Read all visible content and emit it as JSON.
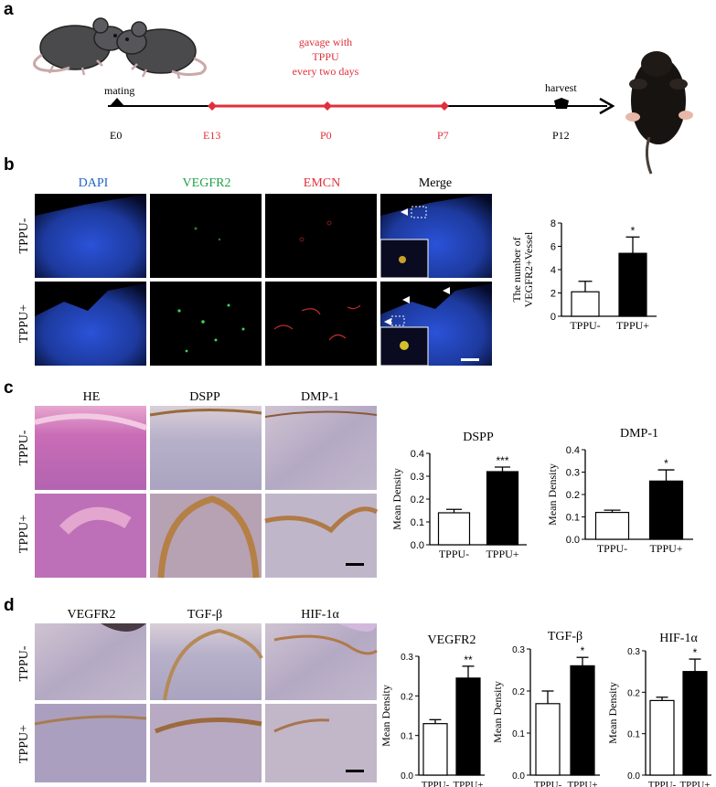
{
  "panel_a": {
    "letter": "a",
    "treatment_text": [
      "gavage with",
      "TPPU",
      "every two days"
    ],
    "timepoints": [
      {
        "label": "mating",
        "kind": "event"
      },
      {
        "label": "E0",
        "kind": "day"
      },
      {
        "label": "E13",
        "kind": "day"
      },
      {
        "label": "P0",
        "kind": "day"
      },
      {
        "label": "P7",
        "kind": "day"
      },
      {
        "label": "harvest",
        "kind": "event"
      },
      {
        "label": "P12",
        "kind": "day"
      }
    ],
    "colors": {
      "treatment": "#e0303a",
      "timeline": "#000000"
    }
  },
  "panel_b": {
    "letter": "b",
    "columns": [
      "DAPI",
      "VEGFR2",
      "EMCN",
      "Merge"
    ],
    "column_colors": [
      "#1e64c8",
      "#1fa14a",
      "#e0303a",
      "#000000"
    ],
    "rows": [
      "TPPU-",
      "TPPU+"
    ]
  },
  "panel_c": {
    "letter": "c",
    "columns": [
      "HE",
      "DSPP",
      "DMP-1"
    ],
    "rows": [
      "TPPU-",
      "TPPU+"
    ]
  },
  "panel_d": {
    "letter": "d",
    "columns": [
      "VEGFR2",
      "TGF-β",
      "HIF-1α"
    ],
    "rows": [
      "TPPU-",
      "TPPU+"
    ]
  },
  "chart_data": [
    {
      "id": "b",
      "type": "bar",
      "title": "",
      "ylabel": [
        "The number of",
        "VEGFR2+Vessel"
      ],
      "categories": [
        "TPPU-",
        "TPPU+"
      ],
      "values": [
        2.1,
        5.4
      ],
      "errors": [
        0.9,
        1.4
      ],
      "ylim": [
        0,
        8
      ],
      "yticks": [
        "0",
        "2",
        "4",
        "6",
        "8"
      ],
      "significance": "*"
    },
    {
      "id": "c1",
      "type": "bar",
      "title": "DSPP",
      "ylabel": "Mean Density",
      "categories": [
        "TPPU-",
        "TPPU+"
      ],
      "values": [
        0.14,
        0.32
      ],
      "errors": [
        0.015,
        0.02
      ],
      "ylim": [
        0,
        0.4
      ],
      "yticks": [
        "0.0",
        "0.1",
        "0.2",
        "0.3",
        "0.4"
      ],
      "significance": "***"
    },
    {
      "id": "c2",
      "type": "bar",
      "title": "DMP-1",
      "ylabel": "Mean Density",
      "categories": [
        "TPPU-",
        "TPPU+"
      ],
      "values": [
        0.12,
        0.26
      ],
      "errors": [
        0.01,
        0.05
      ],
      "ylim": [
        0,
        0.4
      ],
      "yticks": [
        "0.0",
        "0.1",
        "0.2",
        "0.3",
        "0.4"
      ],
      "significance": "*"
    },
    {
      "id": "d1",
      "type": "bar",
      "title": "VEGFR2",
      "ylabel": "Mean Density",
      "categories": [
        "TPPU-",
        "TPPU+"
      ],
      "values": [
        0.13,
        0.245
      ],
      "errors": [
        0.01,
        0.03
      ],
      "ylim": [
        0,
        0.3
      ],
      "yticks": [
        "0.0",
        "0.1",
        "0.2",
        "0.3"
      ],
      "significance": "**"
    },
    {
      "id": "d2",
      "type": "bar",
      "title": "TGF-β",
      "ylabel": "Mean Density",
      "categories": [
        "TPPU-",
        "TPPU+"
      ],
      "values": [
        0.17,
        0.26
      ],
      "errors": [
        0.03,
        0.02
      ],
      "ylim": [
        0,
        0.3
      ],
      "yticks": [
        "0.0",
        "0.1",
        "0.2",
        "0.3"
      ],
      "significance": "*"
    },
    {
      "id": "d3",
      "type": "bar",
      "title": "HIF-1α",
      "ylabel": "Mean Density",
      "categories": [
        "TPPU-",
        "TPPU+"
      ],
      "values": [
        0.18,
        0.25
      ],
      "errors": [
        0.008,
        0.03
      ],
      "ylim": [
        0,
        0.3
      ],
      "yticks": [
        "0.0",
        "0.1",
        "0.2",
        "0.3"
      ],
      "significance": "*"
    }
  ]
}
